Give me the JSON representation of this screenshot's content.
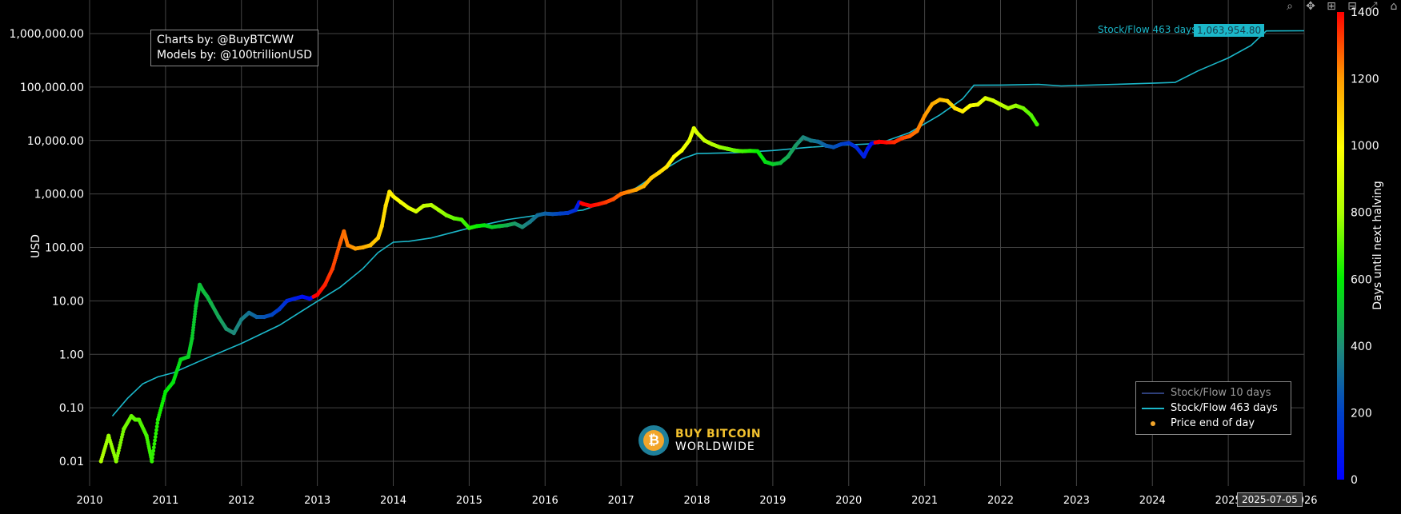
{
  "credits": {
    "line1": "Charts by: @BuyBTCWW",
    "line2": "Models by: @100trillionUSD"
  },
  "logo": {
    "line1": "BUY BITCOIN",
    "line2": "WORLDWIDE",
    "glyph": "₿"
  },
  "hover": {
    "series": "Stock/Flow 463 days",
    "value": "1,063,954.80",
    "date": "2025-07-05"
  },
  "toolbar": {
    "icons": [
      "zoom-icon",
      "pan-icon",
      "zoom-in-icon",
      "zoom-out-icon",
      "autoscale-icon",
      "home-icon"
    ]
  },
  "legend": [
    {
      "name": "Stock/Flow 10 days",
      "color": "#2e3f7a",
      "kind": "line"
    },
    {
      "name": "Stock/Flow 463 days",
      "color": "#1bb7c9",
      "kind": "line"
    },
    {
      "name": "Price end of day",
      "color": "#f2a52a",
      "kind": "dot"
    }
  ],
  "chart_data": {
    "type": "scatter",
    "ylabel": "USD",
    "y_scale": "log",
    "y_ticks": [
      0.01,
      0.1,
      1,
      10,
      100,
      1000,
      10000,
      100000,
      1000000
    ],
    "y_tick_labels": [
      "0.01",
      "0.10",
      "1.00",
      "10.00",
      "100.00",
      "1,000.00",
      "10,000.00",
      "100,000.00",
      "1,000,000.00"
    ],
    "x_ticks": [
      "2010",
      "2011",
      "2012",
      "2013",
      "2014",
      "2015",
      "2016",
      "2017",
      "2018",
      "2019",
      "2020",
      "2021",
      "2022",
      "2023",
      "2024",
      "2025",
      "2026"
    ],
    "xlim": [
      2010,
      2026
    ],
    "colorbar": {
      "title": "Days until next halving",
      "min": 0,
      "max": 1400,
      "ticks": [
        "0",
        "200",
        "400",
        "600",
        "800",
        "1000",
        "1200",
        "1400"
      ]
    },
    "series": [
      {
        "name": "Stock/Flow 463 days",
        "color": "#1bb7c9",
        "x": [
          2010.3,
          2010.5,
          2010.7,
          2010.9,
          2011.1,
          2011.5,
          2012.0,
          2012.5,
          2012.9,
          2013.3,
          2013.6,
          2013.8,
          2014.0,
          2014.2,
          2014.5,
          2015.0,
          2015.5,
          2016.0,
          2016.5,
          2016.8,
          2017.2,
          2017.5,
          2017.8,
          2018.0,
          2018.5,
          2019.0,
          2019.5,
          2020.0,
          2020.4,
          2020.8,
          2021.2,
          2021.5,
          2021.65,
          2022.0,
          2022.5,
          2022.8,
          2023.5,
          2024.0,
          2024.3,
          2024.6,
          2025.0,
          2025.3,
          2025.5,
          2026.0
        ],
        "y": [
          0.07,
          0.15,
          0.28,
          0.38,
          0.45,
          0.8,
          1.6,
          3.5,
          8,
          18,
          40,
          80,
          125,
          130,
          150,
          230,
          330,
          420,
          500,
          700,
          1300,
          2500,
          4500,
          5700,
          5900,
          6500,
          7500,
          8300,
          8800,
          14000,
          30000,
          60000,
          108000,
          109000,
          112000,
          105000,
          112000,
          118000,
          122000,
          200000,
          350000,
          600000,
          1120000,
          1130000
        ]
      },
      {
        "name": "Price end of day",
        "x": [
          2010.15,
          2010.25,
          2010.35,
          2010.45,
          2010.55,
          2010.6,
          2010.65,
          2010.75,
          2010.82,
          2010.9,
          2011.0,
          2011.1,
          2011.2,
          2011.3,
          2011.35,
          2011.4,
          2011.45,
          2011.5,
          2011.55,
          2011.6,
          2011.7,
          2011.8,
          2011.9,
          2012.0,
          2012.1,
          2012.2,
          2012.3,
          2012.4,
          2012.5,
          2012.6,
          2012.7,
          2012.8,
          2012.9,
          2013.0,
          2013.1,
          2013.2,
          2013.3,
          2013.35,
          2013.4,
          2013.5,
          2013.6,
          2013.7,
          2013.8,
          2013.85,
          2013.9,
          2013.95,
          2014.0,
          2014.1,
          2014.2,
          2014.3,
          2014.4,
          2014.5,
          2014.6,
          2014.7,
          2014.8,
          2014.9,
          2015.0,
          2015.1,
          2015.2,
          2015.3,
          2015.4,
          2015.5,
          2015.6,
          2015.7,
          2015.8,
          2015.9,
          2016.0,
          2016.1,
          2016.2,
          2016.3,
          2016.4,
          2016.45,
          2016.5,
          2016.6,
          2016.7,
          2016.8,
          2016.9,
          2017.0,
          2017.1,
          2017.2,
          2017.3,
          2017.4,
          2017.5,
          2017.6,
          2017.7,
          2017.8,
          2017.9,
          2017.96,
          2018.0,
          2018.1,
          2018.2,
          2018.3,
          2018.4,
          2018.5,
          2018.6,
          2018.7,
          2018.8,
          2018.9,
          2019.0,
          2019.1,
          2019.2,
          2019.3,
          2019.4,
          2019.5,
          2019.6,
          2019.7,
          2019.8,
          2019.9,
          2020.0,
          2020.1,
          2020.2,
          2020.25,
          2020.3,
          2020.4,
          2020.5,
          2020.6,
          2020.7,
          2020.8,
          2020.9,
          2021.0,
          2021.1,
          2021.2,
          2021.3,
          2021.4,
          2021.5,
          2021.6,
          2021.7,
          2021.8,
          2021.9,
          2022.0,
          2022.1,
          2022.2,
          2022.3,
          2022.4,
          2022.48
        ],
        "y": [
          0.01,
          0.03,
          0.01,
          0.04,
          0.07,
          0.06,
          0.06,
          0.03,
          0.01,
          0.06,
          0.2,
          0.3,
          0.8,
          0.9,
          2,
          8,
          20,
          15,
          12,
          9,
          5,
          3,
          2.5,
          4.5,
          6,
          5,
          5,
          5.5,
          7,
          10,
          11,
          12,
          11,
          13,
          20,
          40,
          120,
          200,
          110,
          95,
          100,
          110,
          150,
          250,
          600,
          1100,
          900,
          700,
          550,
          470,
          600,
          620,
          500,
          400,
          350,
          330,
          230,
          250,
          260,
          240,
          250,
          260,
          280,
          240,
          300,
          400,
          430,
          420,
          430,
          440,
          500,
          700,
          650,
          600,
          640,
          700,
          800,
          1000,
          1100,
          1200,
          1400,
          2000,
          2500,
          3200,
          5000,
          6500,
          10000,
          17000,
          14000,
          10000,
          8500,
          7500,
          7000,
          6500,
          6300,
          6400,
          6300,
          4000,
          3600,
          3800,
          5000,
          8000,
          11500,
          10000,
          9500,
          8000,
          7500,
          8500,
          9000,
          7500,
          5000,
          7000,
          8800,
          9500,
          9200,
          9300,
          11000,
          12000,
          15000,
          29000,
          48000,
          58000,
          55000,
          40000,
          35000,
          45000,
          47000,
          62000,
          56000,
          47000,
          40000,
          45000,
          40000,
          30000,
          20000
        ],
        "color_days": [
          810,
          780,
          760,
          740,
          720,
          710,
          700,
          680,
          660,
          640,
          600,
          580,
          560,
          540,
          530,
          520,
          510,
          500,
          490,
          480,
          450,
          420,
          390,
          370,
          330,
          290,
          250,
          220,
          180,
          140,
          100,
          60,
          30,
          1400,
          1360,
          1320,
          1280,
          1260,
          1240,
          1200,
          1170,
          1130,
          1100,
          1080,
          1060,
          1040,
          1020,
          980,
          940,
          900,
          870,
          830,
          800,
          760,
          720,
          690,
          650,
          620,
          580,
          540,
          510,
          470,
          430,
          400,
          360,
          320,
          290,
          250,
          210,
          180,
          140,
          60,
          1420,
          1400,
          1370,
          1330,
          1300,
          1260,
          1230,
          1190,
          1150,
          1120,
          1080,
          1050,
          1010,
          970,
          940,
          920,
          900,
          860,
          830,
          790,
          750,
          720,
          680,
          650,
          610,
          570,
          540,
          500,
          460,
          430,
          390,
          360,
          320,
          280,
          250,
          210,
          170,
          140,
          100,
          80,
          40,
          1420,
          1390,
          1350,
          1320,
          1280,
          1250,
          1210,
          1170,
          1140,
          1100,
          1070,
          1030,
          990,
          960,
          920,
          890,
          850,
          810,
          780,
          740,
          700,
          680
        ]
      }
    ]
  }
}
